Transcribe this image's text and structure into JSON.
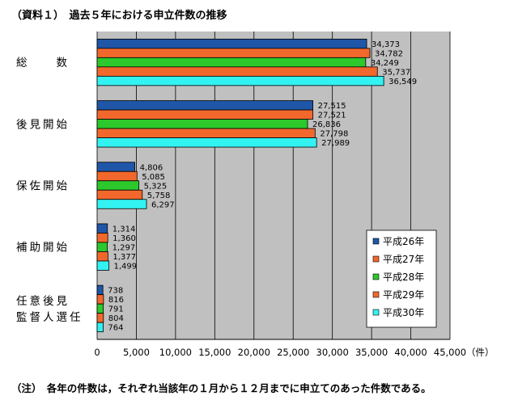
{
  "title": "（資料１）　過去５年における申立件数の推移",
  "note": "（注）　各年の件数は，それぞれ当該年の１月から１２月までに申立てのあった件数である。",
  "chart_data": {
    "type": "bar",
    "orientation": "horizontal",
    "categories": [
      [
        "総　　数"
      ],
      [
        "後見開始"
      ],
      [
        "保佐開始"
      ],
      [
        "補助開始"
      ],
      [
        "任意後見",
        "監督人選任"
      ]
    ],
    "series": [
      {
        "name": "平成26年",
        "color": "#1f56a8",
        "values": [
          34373,
          27515,
          4806,
          1314,
          738
        ],
        "labels": [
          "34,373",
          "27,515",
          "4,806",
          "1,314",
          "738"
        ]
      },
      {
        "name": "平成27年",
        "color": "#f2682c",
        "values": [
          34782,
          27521,
          5085,
          1360,
          816
        ],
        "labels": [
          "34,782",
          "27,521",
          "5,085",
          "1,360",
          "816"
        ]
      },
      {
        "name": "平成28年",
        "color": "#2cc82c",
        "values": [
          34249,
          26836,
          5325,
          1297,
          791
        ],
        "labels": [
          "34,249",
          "26,836",
          "5,325",
          "1,297",
          "791"
        ]
      },
      {
        "name": "平成29年",
        "color": "#f2682c",
        "values": [
          35737,
          27798,
          5758,
          1377,
          804
        ],
        "labels": [
          "35,737",
          "27,798",
          "5,758",
          "1,377",
          "804"
        ]
      },
      {
        "name": "平成30年",
        "color": "#33f2f2",
        "values": [
          36549,
          27989,
          6297,
          1499,
          764
        ],
        "labels": [
          "36,549",
          "27,989",
          "6,297",
          "1,499",
          "764"
        ]
      }
    ],
    "xlim": [
      0,
      45000
    ],
    "xticks": [
      0,
      5000,
      10000,
      15000,
      20000,
      25000,
      30000,
      35000,
      40000,
      45000
    ],
    "xtick_labels": [
      "0",
      "5,000",
      "10,000",
      "15,000",
      "20,000",
      "25,000",
      "30,000",
      "35,000",
      "40,000",
      "45,000"
    ],
    "xunit": "（件）",
    "grid": "vertical",
    "legend_position": "bottom-right",
    "plot_background": "#c0c0c0"
  }
}
